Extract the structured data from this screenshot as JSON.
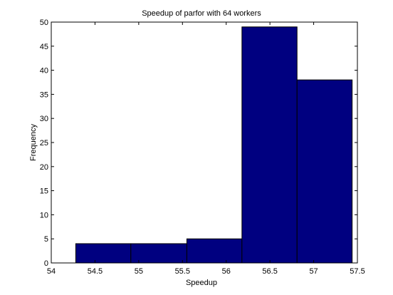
{
  "chart_data": {
    "type": "bar",
    "title": "Speedup of parfor with 64 workers",
    "xlabel": "Speedup",
    "ylabel": "Frequency",
    "xlim": [
      54,
      57.5
    ],
    "ylim": [
      0,
      50
    ],
    "xticks": [
      "54",
      "54.5",
      "55",
      "55.5",
      "56",
      "56.5",
      "57",
      "57.5"
    ],
    "yticks": [
      "0",
      "5",
      "10",
      "15",
      "20",
      "25",
      "30",
      "35",
      "40",
      "45",
      "50"
    ],
    "bins": [
      {
        "x0": 54.28,
        "x1": 54.91,
        "value": 4
      },
      {
        "x0": 54.91,
        "x1": 55.55,
        "value": 4
      },
      {
        "x0": 55.55,
        "x1": 56.18,
        "value": 5
      },
      {
        "x0": 56.18,
        "x1": 56.81,
        "value": 49
      },
      {
        "x0": 56.81,
        "x1": 57.44,
        "value": 38
      }
    ],
    "bar_color": "#000080",
    "grid": false,
    "legend": "none"
  }
}
